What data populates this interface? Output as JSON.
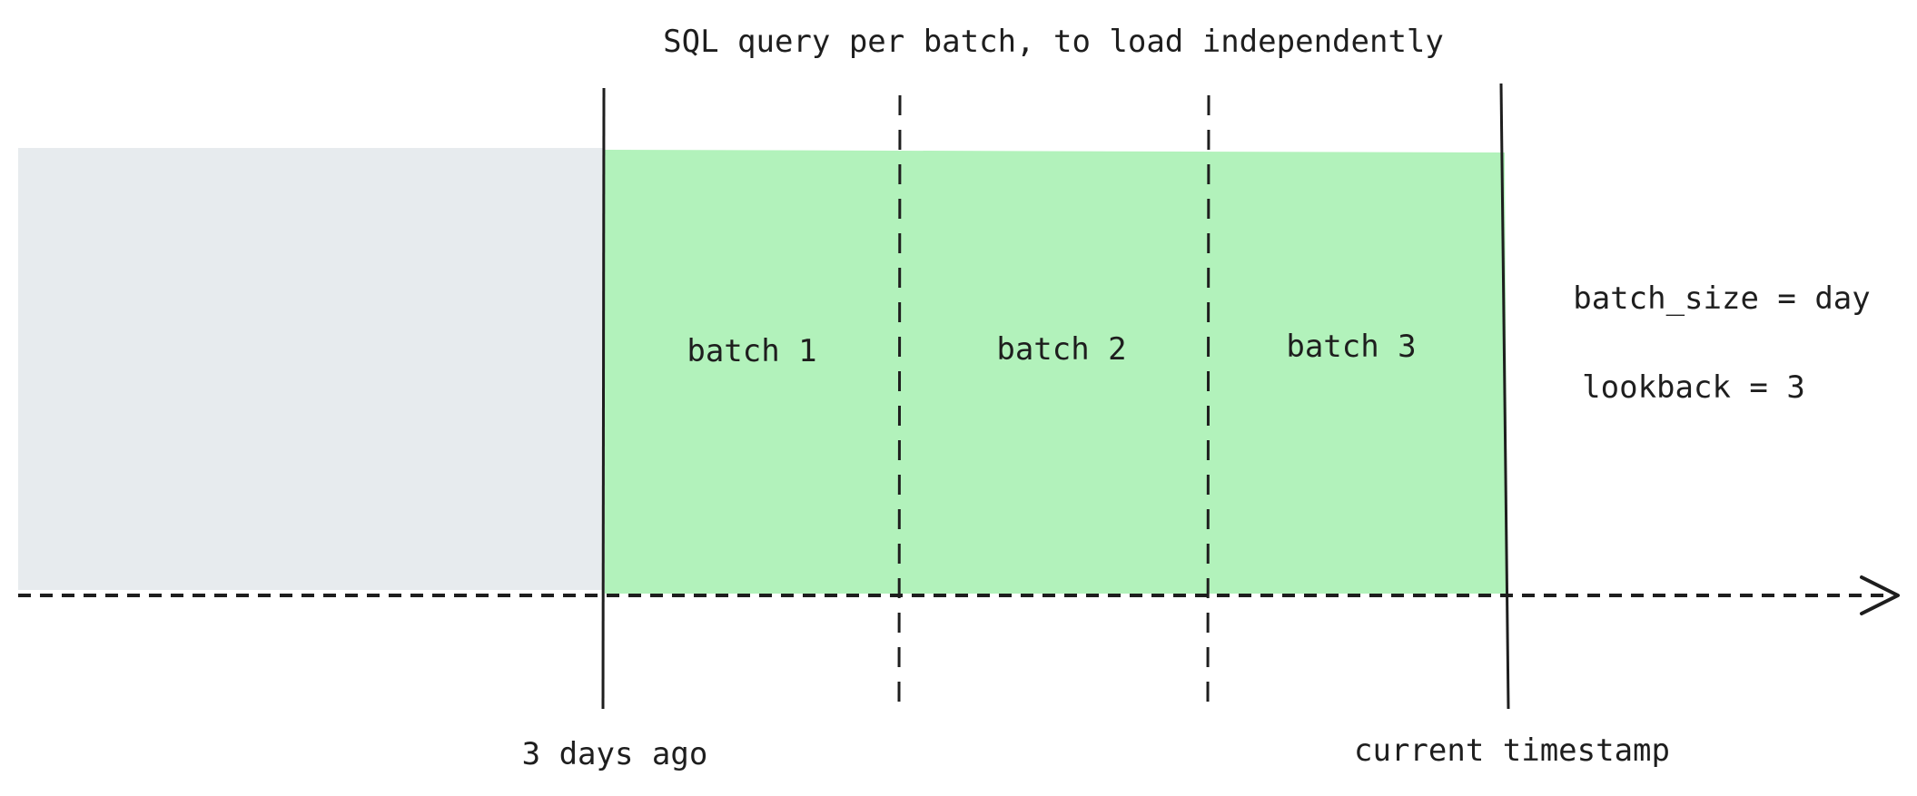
{
  "title": "SQL query per batch, to load independently",
  "batches": [
    "batch 1",
    "batch 2",
    "batch 3"
  ],
  "params": {
    "batch_size": "batch_size = day",
    "lookback": "lookback = 3"
  },
  "markers": {
    "start": "3 days ago",
    "end": "current timestamp"
  },
  "colors": {
    "past_region": "#e7ebee",
    "batch_region": "#b2f2bb",
    "stroke": "#1e1e1e"
  }
}
